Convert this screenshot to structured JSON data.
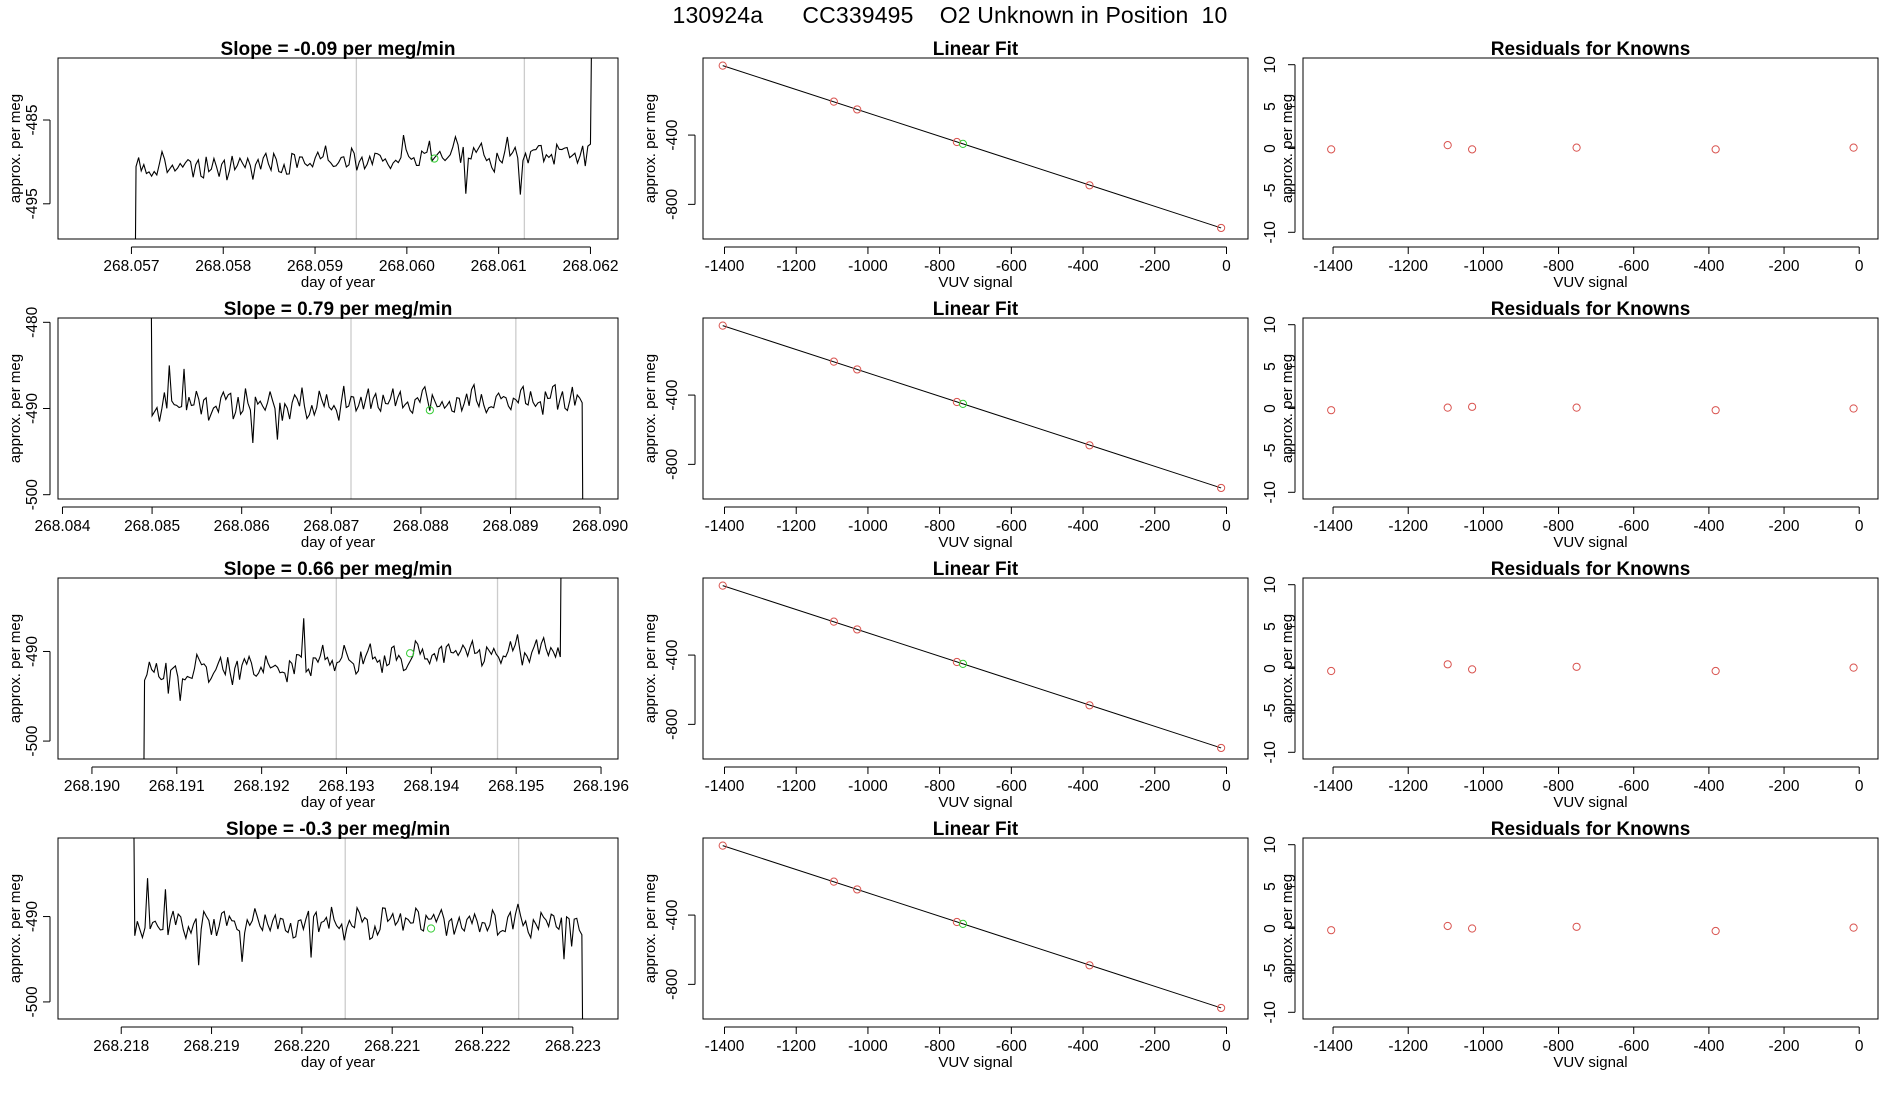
{
  "page_title": "130924a      CC339495    O2 Unknown in Position  10",
  "chart_data": {
    "type": "multi-panel",
    "rows": [
      {
        "timeseries": {
          "type": "line",
          "title": "Slope =  -0.09  per meg/min",
          "xlabel": "day of year",
          "ylabel": "approx. per meg",
          "xlim": [
            268.0562,
            268.0623
          ],
          "ylim": [
            -499.2,
            -477.6
          ],
          "xticks": [
            "268.057",
            "268.058",
            "268.059",
            "268.060",
            "268.061",
            "268.062"
          ],
          "yticks": [
            "-485",
            "-495"
          ],
          "vlines": [
            268.05945,
            268.06128
          ],
          "marker": [
            268.0603,
            -489.6
          ],
          "x_start": 268.05705,
          "x_end": 268.062,
          "entry": -515,
          "exit": -470,
          "base_start": -490.9,
          "base_end": -488.6,
          "amp": 1.7,
          "seed": 7,
          "anomalies": [
            [
              268.06065,
              -493.8
            ],
            [
              268.06125,
              -493.9
            ],
            [
              268.06165,
              -488.5
            ],
            [
              268.06195,
              -490.5
            ],
            [
              268.05995,
              -486.8
            ]
          ]
        },
        "fit": {
          "type": "scatter",
          "title": "Linear Fit",
          "xlabel": "VUV signal",
          "ylabel": "approx. per meg",
          "xlim": [
            -1460,
            60
          ],
          "ylim": [
            -1000,
            45
          ],
          "xticks": [
            -1400,
            -1200,
            -1000,
            -800,
            -600,
            -400,
            -200,
            0
          ],
          "yticks": [
            -400,
            -800
          ],
          "line": [
            [
              -1405,
              1
            ],
            [
              -15,
              -936
            ]
          ],
          "knowns": [
            [
              -1405,
              1
            ],
            [
              -1095,
              -207
            ],
            [
              -1030,
              -252
            ],
            [
              -752,
              -440
            ],
            [
              -382,
              -690
            ],
            [
              -15,
              -936
            ]
          ],
          "unknown": [
            -735,
            -451
          ]
        },
        "residuals": {
          "type": "scatter",
          "title": "Residuals for Knowns",
          "xlabel": "VUV signal",
          "ylabel": "approx. per meg",
          "xlim": [
            -1480,
            50
          ],
          "ylim": [
            -10.8,
            10.8
          ],
          "xticks": [
            -1400,
            -1200,
            -1000,
            -800,
            -600,
            -400,
            -200,
            0
          ],
          "yticks": [
            10,
            5,
            0,
            -5,
            -10
          ],
          "points": [
            [
              -1405,
              -0.1
            ],
            [
              -1095,
              0.4
            ],
            [
              -1030,
              -0.1
            ],
            [
              -752,
              0.1
            ],
            [
              -382,
              -0.1
            ],
            [
              -15,
              0.1
            ]
          ]
        }
      },
      {
        "timeseries": {
          "type": "line",
          "title": "Slope =  0.79  per meg/min",
          "xlabel": "day of year",
          "ylabel": "approx. per meg",
          "xlim": [
            268.08395,
            268.0902
          ],
          "ylim": [
            -500.5,
            -479.5
          ],
          "xticks": [
            "268.084",
            "268.085",
            "268.086",
            "268.087",
            "268.088",
            "268.089",
            "268.090"
          ],
          "yticks": [
            "-480",
            "-490",
            "-500"
          ],
          "vlines": [
            268.08722,
            268.08906
          ],
          "marker": [
            268.0881,
            -490.2
          ],
          "x_start": 268.085,
          "x_end": 268.0898,
          "entry": -466,
          "exit": -520,
          "base_start": -489.5,
          "base_end": -489.0,
          "amp": 1.8,
          "seed": 11,
          "anomalies": [
            [
              268.0852,
              -485.0
            ],
            [
              268.08535,
              -485.4
            ],
            [
              268.08613,
              -494.0
            ],
            [
              268.0864,
              -493.6
            ]
          ]
        },
        "fit": {
          "type": "scatter",
          "title": "Linear Fit",
          "xlabel": "VUV signal",
          "ylabel": "approx. per meg",
          "xlim": [
            -1460,
            60
          ],
          "ylim": [
            -1000,
            45
          ],
          "xticks": [
            -1400,
            -1200,
            -1000,
            -800,
            -600,
            -400,
            -200,
            0
          ],
          "yticks": [
            -400,
            -800
          ],
          "line": [
            [
              -1405,
              1
            ],
            [
              -15,
              -936
            ]
          ],
          "knowns": [
            [
              -1405,
              1
            ],
            [
              -1095,
              -207
            ],
            [
              -1030,
              -252
            ],
            [
              -752,
              -440
            ],
            [
              -382,
              -690
            ],
            [
              -15,
              -936
            ]
          ],
          "unknown": [
            -735,
            -451
          ]
        },
        "residuals": {
          "type": "scatter",
          "title": "Residuals for Knowns",
          "xlabel": "VUV signal",
          "ylabel": "approx. per meg",
          "xlim": [
            -1480,
            50
          ],
          "ylim": [
            -10.8,
            10.8
          ],
          "xticks": [
            -1400,
            -1200,
            -1000,
            -800,
            -600,
            -400,
            -200,
            0
          ],
          "yticks": [
            10,
            5,
            0,
            -5,
            -10
          ],
          "points": [
            [
              -1405,
              -0.2
            ],
            [
              -1095,
              0.1
            ],
            [
              -1030,
              0.2
            ],
            [
              -752,
              0.1
            ],
            [
              -382,
              -0.2
            ],
            [
              -15,
              0.0
            ]
          ]
        }
      },
      {
        "timeseries": {
          "type": "line",
          "title": "Slope =  0.66  per meg/min",
          "xlabel": "day of year",
          "ylabel": "approx. per meg",
          "xlim": [
            268.1896,
            268.1962
          ],
          "ylim": [
            -502.0,
            -481.8
          ],
          "xticks": [
            "268.190",
            "268.191",
            "268.192",
            "268.193",
            "268.194",
            "268.195",
            "268.196"
          ],
          "yticks": [
            "-490",
            "-500"
          ],
          "vlines": [
            268.19288,
            268.19478
          ],
          "marker": [
            268.19375,
            -490.2
          ],
          "x_start": 268.19062,
          "x_end": 268.19552,
          "entry": -515,
          "exit": -470,
          "base_start": -492.4,
          "base_end": -489.6,
          "amp": 1.7,
          "seed": 23,
          "anomalies": [
            [
              268.1909,
              -494.7
            ],
            [
              268.19105,
              -495.5
            ],
            [
              268.1925,
              -486.3
            ]
          ]
        },
        "fit": {
          "type": "scatter",
          "title": "Linear Fit",
          "xlabel": "VUV signal",
          "ylabel": "approx. per meg",
          "xlim": [
            -1460,
            60
          ],
          "ylim": [
            -1000,
            45
          ],
          "xticks": [
            -1400,
            -1200,
            -1000,
            -800,
            -600,
            -400,
            -200,
            0
          ],
          "yticks": [
            -400,
            -800
          ],
          "line": [
            [
              -1405,
              1
            ],
            [
              -15,
              -936
            ]
          ],
          "knowns": [
            [
              -1405,
              1
            ],
            [
              -1095,
              -207
            ],
            [
              -1030,
              -252
            ],
            [
              -752,
              -440
            ],
            [
              -382,
              -690
            ],
            [
              -15,
              -936
            ]
          ],
          "unknown": [
            -735,
            -451
          ]
        },
        "residuals": {
          "type": "scatter",
          "title": "Residuals for Knowns",
          "xlabel": "VUV signal",
          "ylabel": "approx. per meg",
          "xlim": [
            -1480,
            50
          ],
          "ylim": [
            -10.8,
            10.8
          ],
          "xticks": [
            -1400,
            -1200,
            -1000,
            -800,
            -600,
            -400,
            -200,
            0
          ],
          "yticks": [
            10,
            5,
            0,
            -5,
            -10
          ],
          "points": [
            [
              -1405,
              -0.3
            ],
            [
              -1095,
              0.5
            ],
            [
              -1030,
              -0.1
            ],
            [
              -752,
              0.2
            ],
            [
              -382,
              -0.3
            ],
            [
              -15,
              0.1
            ]
          ]
        }
      },
      {
        "timeseries": {
          "type": "line",
          "title": "Slope =  -0.3  per meg/min",
          "xlabel": "day of year",
          "ylabel": "approx. per meg",
          "xlim": [
            268.2173,
            268.2235
          ],
          "ylim": [
            -502.0,
            -480.8
          ],
          "xticks": [
            "268.218",
            "268.219",
            "268.220",
            "268.221",
            "268.222",
            "268.223"
          ],
          "yticks": [
            "-490",
            "-500"
          ],
          "vlines": [
            268.22048,
            268.2224
          ],
          "marker": [
            268.22143,
            -491.4
          ],
          "x_start": 268.21815,
          "x_end": 268.2231,
          "entry": -470,
          "exit": -515,
          "base_start": -490.8,
          "base_end": -490.6,
          "amp": 1.8,
          "seed": 37,
          "anomalies": [
            [
              268.2183,
              -485.5
            ],
            [
              268.2185,
              -486.8
            ],
            [
              268.21885,
              -495.7
            ],
            [
              268.21935,
              -495.3
            ],
            [
              268.2201,
              -494.8
            ],
            [
              268.2229,
              -495.0
            ],
            [
              268.223,
              -493.5
            ]
          ]
        },
        "fit": {
          "type": "scatter",
          "title": "Linear Fit",
          "xlabel": "VUV signal",
          "ylabel": "approx. per meg",
          "xlim": [
            -1460,
            60
          ],
          "ylim": [
            -1000,
            45
          ],
          "xticks": [
            -1400,
            -1200,
            -1000,
            -800,
            -600,
            -400,
            -200,
            0
          ],
          "yticks": [
            -400,
            -800
          ],
          "line": [
            [
              -1405,
              1
            ],
            [
              -15,
              -936
            ]
          ],
          "knowns": [
            [
              -1405,
              1
            ],
            [
              -1095,
              -207
            ],
            [
              -1030,
              -252
            ],
            [
              -752,
              -440
            ],
            [
              -382,
              -690
            ],
            [
              -15,
              -936
            ]
          ],
          "unknown": [
            -735,
            -451
          ]
        },
        "residuals": {
          "type": "scatter",
          "title": "Residuals for Knowns",
          "xlabel": "VUV signal",
          "ylabel": "approx. per meg",
          "xlim": [
            -1480,
            50
          ],
          "ylim": [
            -10.8,
            10.8
          ],
          "xticks": [
            -1400,
            -1200,
            -1000,
            -800,
            -600,
            -400,
            -200,
            0
          ],
          "yticks": [
            10,
            5,
            0,
            -5,
            -10
          ],
          "points": [
            [
              -1405,
              -0.2
            ],
            [
              -1095,
              0.3
            ],
            [
              -1030,
              0.0
            ],
            [
              -752,
              0.2
            ],
            [
              -382,
              -0.3
            ],
            [
              -15,
              0.1
            ]
          ]
        }
      }
    ],
    "colors": {
      "series": "#000000",
      "known_points": "#d9534f",
      "unknown_point": "#33cc33",
      "vlines": "#cccccc",
      "frame": "#000000"
    }
  }
}
